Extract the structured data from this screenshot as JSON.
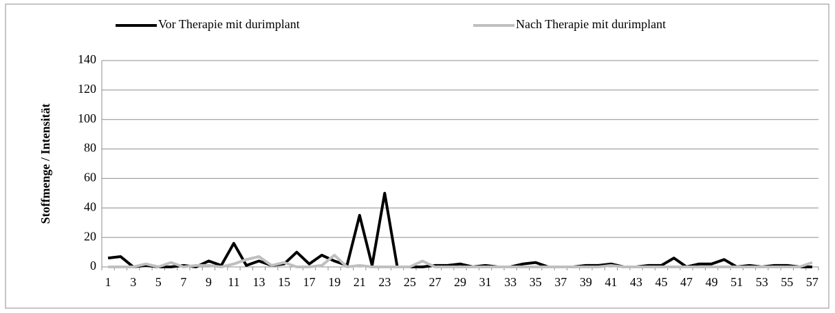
{
  "chart_data": {
    "type": "line",
    "y_label": "Stoffmenge / Intensität",
    "categories": [
      "1",
      null,
      "3",
      null,
      "5",
      null,
      "7",
      null,
      "9",
      null,
      "11",
      null,
      "13",
      null,
      "15",
      null,
      "17",
      null,
      "19",
      null,
      "21",
      null,
      "23",
      null,
      "25",
      null,
      "27",
      null,
      "29",
      null,
      "31",
      null,
      "33",
      null,
      "35",
      null,
      "37",
      null,
      "39",
      null,
      "41",
      null,
      "43",
      null,
      "45",
      null,
      "47",
      null,
      "49",
      null,
      "51",
      null,
      "53",
      null,
      "55",
      null,
      "57"
    ],
    "series": [
      {
        "name": "Vor Therapie mit durimplant",
        "color": "#000000",
        "values": [
          6,
          7,
          0,
          1,
          0,
          0,
          1,
          0,
          4,
          1,
          16,
          1,
          4,
          1,
          2,
          10,
          2,
          8,
          4,
          1,
          35,
          1,
          50,
          0,
          0,
          0,
          1,
          1,
          2,
          0,
          1,
          0,
          0,
          2,
          3,
          0,
          0,
          0,
          1,
          1,
          2,
          0,
          0,
          1,
          1,
          6,
          0,
          2,
          2,
          5,
          0,
          1,
          0,
          1,
          1,
          0,
          0
        ]
      },
      {
        "name": "Nach Therapie mit durimplant",
        "color": "#bfbfbf",
        "values": [
          0,
          0,
          0,
          2,
          0,
          3,
          0,
          1,
          1,
          0,
          2,
          5,
          7,
          1,
          3,
          0,
          0,
          1,
          8,
          0,
          1,
          0,
          0,
          0,
          0,
          4,
          0,
          0,
          0,
          0,
          0,
          0,
          0,
          0,
          0,
          0,
          0,
          0,
          0,
          0,
          1,
          0,
          0,
          0,
          0,
          0,
          0,
          0,
          0,
          0,
          0,
          0,
          0,
          0,
          0,
          0,
          3
        ]
      }
    ],
    "ylim": [
      0,
      140
    ],
    "yticks": [
      0,
      20,
      40,
      60,
      80,
      100,
      120,
      140
    ],
    "grid": true,
    "legend": "top"
  }
}
